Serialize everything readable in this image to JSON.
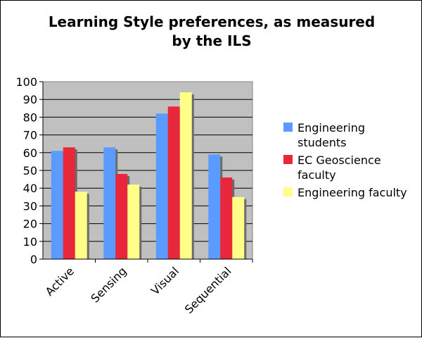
{
  "chart_data": {
    "type": "bar",
    "title": [
      "Learning Style preferences, as measured",
      "by the ILS"
    ],
    "categories": [
      "Active",
      "Sensing",
      "Visual",
      "Sequential"
    ],
    "series": [
      {
        "name": [
          "Engineering",
          "students"
        ],
        "color": "#5b9bff",
        "values": [
          61,
          63,
          82,
          59
        ]
      },
      {
        "name": [
          "EC Geoscience",
          "faculty"
        ],
        "color": "#e8283a",
        "values": [
          63,
          48,
          86,
          46
        ]
      },
      {
        "name": [
          "Engineering faculty"
        ],
        "color": "#ffff88",
        "values": [
          38,
          42,
          94,
          35
        ]
      }
    ],
    "ylim": [
      0,
      100
    ],
    "yticks": [
      "0",
      "10",
      "20",
      "30",
      "40",
      "50",
      "60",
      "70",
      "80",
      "90",
      "100"
    ],
    "plot_background": "#c0c0c0",
    "legend_position": "right",
    "grid": true
  }
}
